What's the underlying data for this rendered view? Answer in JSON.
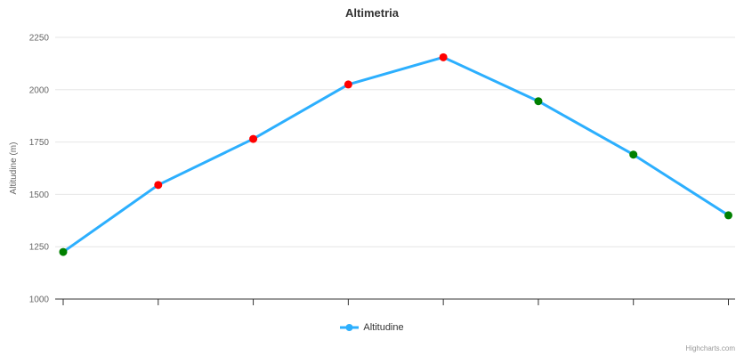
{
  "credit": "Highcharts.com",
  "chart_data": {
    "type": "line",
    "title": "Altimetria",
    "xlabel": "",
    "ylabel": "Altitudine (m)",
    "ylim": [
      1000,
      2250
    ],
    "yticks": [
      1000,
      1250,
      1500,
      1750,
      2000,
      2250
    ],
    "x": [
      0,
      1,
      2,
      3,
      4,
      5,
      6,
      7
    ],
    "x_tick_labels": [
      "",
      "",
      "",
      "",
      "",
      "",
      "",
      ""
    ],
    "grid": true,
    "legend_position": "bottom",
    "colors": {
      "line": "#2caffe",
      "marker_up": "#ff0000",
      "marker_down": "#008000",
      "gridline": "#e6e6e6",
      "axis": "#333333",
      "label": "#666666"
    },
    "series": [
      {
        "name": "Altitudine",
        "line_color": "#2caffe",
        "values": [
          1225,
          1545,
          1765,
          2025,
          2155,
          1945,
          1690,
          1400
        ],
        "point_colors": [
          "#008000",
          "#ff0000",
          "#ff0000",
          "#ff0000",
          "#ff0000",
          "#008000",
          "#008000",
          "#008000"
        ]
      }
    ]
  }
}
